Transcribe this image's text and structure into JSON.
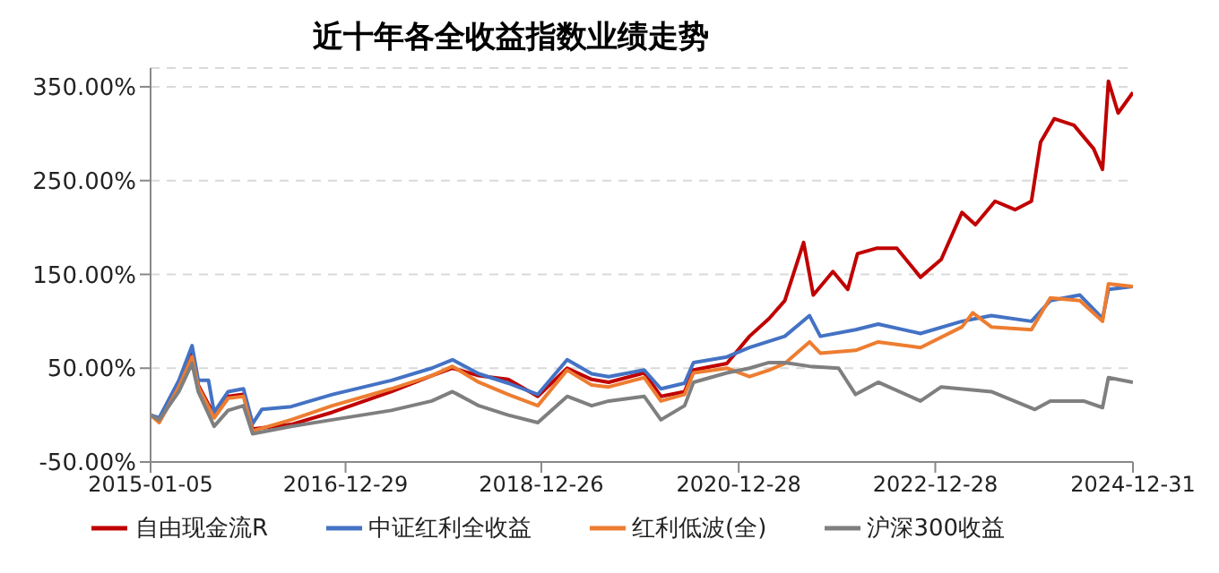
{
  "chart_data": {
    "type": "line",
    "title": "近十年各全收益指数业绩走势",
    "xlim": [
      "2015-01-05",
      "2024-12-31"
    ],
    "xticks": [
      "2015-01-05",
      "2016-12-29",
      "2018-12-26",
      "2020-12-28",
      "2022-12-28",
      "2024-12-31"
    ],
    "ylim": [
      -50,
      370
    ],
    "yticks": [
      {
        "value": -50,
        "label": "-50.00%"
      },
      {
        "value": 50,
        "label": "50.00%"
      },
      {
        "value": 150,
        "label": "150.00%"
      },
      {
        "value": 250,
        "label": "250.00%"
      },
      {
        "value": 350,
        "label": "350.00%"
      }
    ],
    "grid": "y",
    "legend": "bottom",
    "marker": "none",
    "line_style": "solid",
    "series": [
      {
        "name": "自由现金流R",
        "color": "#c00000",
        "x": [
          "2015-01-05",
          "2015-02-06",
          "2015-04-20",
          "2015-06-08",
          "2015-07-01",
          "2015-08-29",
          "2015-10-20",
          "2015-12-16",
          "2016-01-19",
          "2016-06-10",
          "2016-11-10",
          "2017-06-17",
          "2017-11-14",
          "2018-01-30",
          "2018-05-08",
          "2018-08-25",
          "2018-12-13",
          "2019-04-01",
          "2019-07-01",
          "2019-09-02",
          "2020-01-12",
          "2020-03-14",
          "2020-06-10",
          "2020-07-13",
          "2020-11-14",
          "2021-02-06",
          "2021-04-20",
          "2021-06-17",
          "2021-08-26",
          "2021-10-01",
          "2021-12-13",
          "2022-02-06",
          "2022-03-14",
          "2022-05-26",
          "2022-08-07",
          "2022-11-03",
          "2023-01-19",
          "2023-04-06",
          "2023-05-26",
          "2023-08-07",
          "2023-10-20",
          "2023-12-20",
          "2024-01-23",
          "2024-03-14",
          "2024-05-26",
          "2024-08-07",
          "2024-09-09",
          "2024-10-01",
          "2024-11-06",
          "2024-12-31"
        ],
        "values": [
          0,
          -5,
          32,
          65,
          32,
          0,
          20,
          22,
          -15,
          -10,
          3,
          25,
          42,
          50,
          42,
          38,
          20,
          50,
          38,
          35,
          45,
          20,
          25,
          48,
          55,
          84,
          103,
          122,
          184,
          128,
          153,
          134,
          172,
          178,
          178,
          147,
          166,
          216,
          203,
          228,
          219,
          228,
          291,
          316,
          309,
          284,
          262,
          356,
          322,
          344
        ]
      },
      {
        "name": "中证红利全收益",
        "color": "#4472c4",
        "x": [
          "2015-01-05",
          "2015-02-06",
          "2015-04-20",
          "2015-06-08",
          "2015-07-01",
          "2015-08-08",
          "2015-08-29",
          "2015-10-20",
          "2015-12-16",
          "2016-01-19",
          "2016-02-22",
          "2016-06-10",
          "2016-11-10",
          "2017-06-17",
          "2017-11-14",
          "2018-01-30",
          "2018-05-08",
          "2018-08-25",
          "2018-12-13",
          "2019-04-01",
          "2019-07-01",
          "2019-09-02",
          "2020-01-12",
          "2020-03-14",
          "2020-06-10",
          "2020-07-13",
          "2020-11-14",
          "2021-02-06",
          "2021-06-17",
          "2021-09-17",
          "2021-10-27",
          "2022-03-07",
          "2022-05-30",
          "2022-11-03",
          "2023-04-06",
          "2023-07-24",
          "2023-12-20",
          "2024-02-28",
          "2024-06-17",
          "2024-09-09",
          "2024-10-01",
          "2024-12-31"
        ],
        "values": [
          0,
          -3,
          37,
          74,
          37,
          37,
          3,
          25,
          28,
          -9,
          6,
          9,
          22,
          37,
          50,
          59,
          44,
          34,
          22,
          59,
          44,
          41,
          48,
          28,
          34,
          56,
          62,
          72,
          84,
          106,
          84,
          91,
          97,
          87,
          100,
          106,
          100,
          122,
          128,
          103,
          134,
          137
        ]
      },
      {
        "name": "红利低波(全)",
        "color": "#ed7d31",
        "x": [
          "2015-01-05",
          "2015-02-06",
          "2015-04-20",
          "2015-06-08",
          "2015-07-01",
          "2015-08-29",
          "2015-10-20",
          "2015-12-16",
          "2016-01-19",
          "2016-06-10",
          "2016-11-10",
          "2017-06-17",
          "2017-11-14",
          "2018-01-30",
          "2018-05-08",
          "2018-08-25",
          "2018-12-13",
          "2019-04-01",
          "2019-07-01",
          "2019-09-02",
          "2020-01-12",
          "2020-03-14",
          "2020-06-10",
          "2020-07-13",
          "2020-11-14",
          "2021-02-06",
          "2021-04-20",
          "2021-06-17",
          "2021-09-17",
          "2021-10-27",
          "2022-03-07",
          "2022-05-30",
          "2022-11-03",
          "2023-04-06",
          "2023-05-16",
          "2023-07-24",
          "2023-12-20",
          "2024-02-28",
          "2024-06-17",
          "2024-09-09",
          "2024-10-01",
          "2024-12-31"
        ],
        "values": [
          0,
          -8,
          30,
          62,
          30,
          -3,
          18,
          20,
          -17,
          -5,
          10,
          28,
          42,
          52,
          35,
          22,
          10,
          48,
          32,
          30,
          40,
          15,
          22,
          45,
          50,
          41,
          48,
          55,
          78,
          66,
          69,
          78,
          72,
          94,
          109,
          94,
          91,
          125,
          122,
          100,
          140,
          137
        ]
      },
      {
        "name": "沪深300收益",
        "color": "#7f7f7f",
        "x": [
          "2015-01-05",
          "2015-02-06",
          "2015-04-20",
          "2015-06-08",
          "2015-07-01",
          "2015-08-29",
          "2015-10-20",
          "2015-12-16",
          "2016-01-19",
          "2016-06-10",
          "2016-11-10",
          "2017-06-17",
          "2017-11-14",
          "2018-01-30",
          "2018-05-08",
          "2018-08-25",
          "2018-12-13",
          "2019-04-01",
          "2019-07-01",
          "2019-09-02",
          "2020-01-12",
          "2020-03-14",
          "2020-06-10",
          "2020-07-13",
          "2020-11-14",
          "2021-02-06",
          "2021-04-20",
          "2021-06-17",
          "2021-09-17",
          "2022-01-03",
          "2022-03-07",
          "2022-05-30",
          "2022-11-03",
          "2023-01-19",
          "2023-07-24",
          "2024-01-02",
          "2024-02-28",
          "2024-07-01",
          "2024-09-09",
          "2024-10-01",
          "2024-12-31"
        ],
        "values": [
          0,
          -5,
          25,
          55,
          25,
          -12,
          5,
          10,
          -20,
          -12,
          -5,
          5,
          15,
          25,
          10,
          0,
          -8,
          20,
          10,
          15,
          20,
          -5,
          10,
          35,
          45,
          50,
          56,
          56,
          52,
          50,
          22,
          35,
          15,
          30,
          25,
          6,
          15,
          15,
          8,
          40,
          35
        ]
      }
    ]
  }
}
